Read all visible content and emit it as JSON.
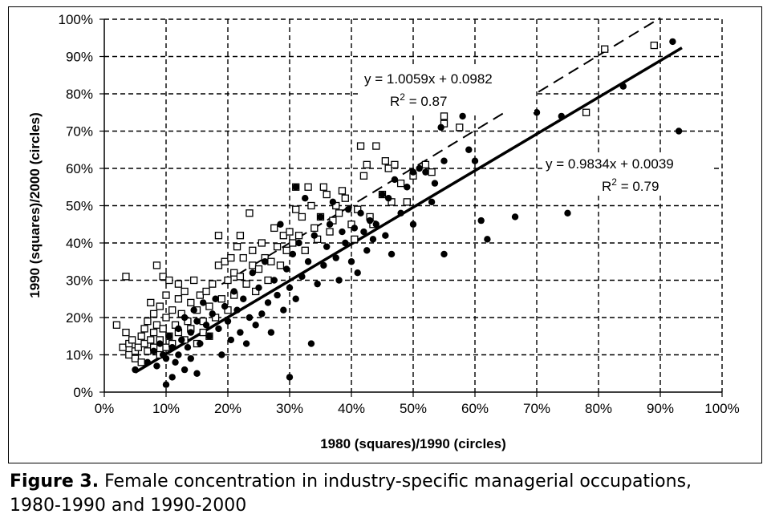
{
  "chart_data": {
    "type": "scatter",
    "xlabel": "1980 (squares)/1990 (circles)",
    "ylabel": "1990 (squares)/2000 (circles)",
    "xlim": [
      0,
      1
    ],
    "ylim": [
      0,
      1
    ],
    "x_ticks": [
      "0%",
      "10%",
      "20%",
      "30%",
      "40%",
      "50%",
      "60%",
      "70%",
      "80%",
      "90%",
      "100%"
    ],
    "y_ticks": [
      "0%",
      "10%",
      "20%",
      "30%",
      "40%",
      "50%",
      "60%",
      "70%",
      "80%",
      "90%",
      "100%"
    ],
    "grid": true,
    "series": [
      {
        "marker": "square",
        "trendline": {
          "style": "dashed",
          "slope": 1.0059,
          "intercept": 0.0982
        },
        "equation": "y = 1.0059x + 0.0982",
        "r2_label": "R",
        "r2_sup": "2",
        "r2_value": " = 0.87",
        "points": [
          [
            0.02,
            0.18
          ],
          [
            0.03,
            0.12
          ],
          [
            0.035,
            0.16
          ],
          [
            0.035,
            0.31
          ],
          [
            0.04,
            0.13
          ],
          [
            0.04,
            0.1
          ],
          [
            0.045,
            0.14
          ],
          [
            0.05,
            0.11
          ],
          [
            0.05,
            0.09
          ],
          [
            0.055,
            0.12
          ],
          [
            0.06,
            0.15
          ],
          [
            0.06,
            0.08
          ],
          [
            0.065,
            0.17
          ],
          [
            0.065,
            0.13
          ],
          [
            0.07,
            0.11
          ],
          [
            0.07,
            0.19
          ],
          [
            0.075,
            0.14
          ],
          [
            0.075,
            0.24
          ],
          [
            0.08,
            0.16
          ],
          [
            0.08,
            0.12
          ],
          [
            0.08,
            0.21
          ],
          [
            0.085,
            0.34
          ],
          [
            0.085,
            0.18
          ],
          [
            0.09,
            0.1
          ],
          [
            0.09,
            0.14
          ],
          [
            0.09,
            0.23
          ],
          [
            0.095,
            0.31
          ],
          [
            0.095,
            0.17
          ],
          [
            0.1,
            0.12
          ],
          [
            0.1,
            0.2
          ],
          [
            0.1,
            0.26
          ],
          [
            0.105,
            0.3
          ],
          [
            0.105,
            0.15
          ],
          [
            0.11,
            0.22
          ],
          [
            0.11,
            0.13
          ],
          [
            0.115,
            0.18
          ],
          [
            0.12,
            0.29
          ],
          [
            0.12,
            0.25
          ],
          [
            0.12,
            0.16
          ],
          [
            0.125,
            0.21
          ],
          [
            0.13,
            0.27
          ],
          [
            0.13,
            0.14
          ],
          [
            0.135,
            0.19
          ],
          [
            0.14,
            0.24
          ],
          [
            0.14,
            0.17
          ],
          [
            0.145,
            0.3
          ],
          [
            0.15,
            0.22
          ],
          [
            0.15,
            0.13
          ],
          [
            0.155,
            0.26
          ],
          [
            0.16,
            0.19
          ],
          [
            0.16,
            0.16
          ],
          [
            0.165,
            0.27
          ],
          [
            0.17,
            0.23
          ],
          [
            0.17,
            0.15
          ],
          [
            0.175,
            0.29
          ],
          [
            0.18,
            0.2
          ],
          [
            0.185,
            0.42
          ],
          [
            0.185,
            0.34
          ],
          [
            0.19,
            0.25
          ],
          [
            0.195,
            0.35
          ],
          [
            0.2,
            0.3
          ],
          [
            0.2,
            0.22
          ],
          [
            0.205,
            0.36
          ],
          [
            0.21,
            0.32
          ],
          [
            0.21,
            0.26
          ],
          [
            0.215,
            0.39
          ],
          [
            0.22,
            0.31
          ],
          [
            0.22,
            0.42
          ],
          [
            0.225,
            0.36
          ],
          [
            0.23,
            0.29
          ],
          [
            0.235,
            0.48
          ],
          [
            0.24,
            0.34
          ],
          [
            0.24,
            0.38
          ],
          [
            0.245,
            0.27
          ],
          [
            0.25,
            0.33
          ],
          [
            0.255,
            0.4
          ],
          [
            0.26,
            0.36
          ],
          [
            0.265,
            0.3
          ],
          [
            0.27,
            0.35
          ],
          [
            0.275,
            0.44
          ],
          [
            0.28,
            0.39
          ],
          [
            0.285,
            0.34
          ],
          [
            0.29,
            0.42
          ],
          [
            0.295,
            0.38
          ],
          [
            0.3,
            0.43
          ],
          [
            0.305,
            0.4
          ],
          [
            0.31,
            0.49
          ],
          [
            0.31,
            0.55
          ],
          [
            0.315,
            0.42
          ],
          [
            0.32,
            0.47
          ],
          [
            0.325,
            0.38
          ],
          [
            0.33,
            0.55
          ],
          [
            0.335,
            0.5
          ],
          [
            0.34,
            0.44
          ],
          [
            0.345,
            0.41
          ],
          [
            0.35,
            0.47
          ],
          [
            0.355,
            0.55
          ],
          [
            0.36,
            0.53
          ],
          [
            0.365,
            0.43
          ],
          [
            0.37,
            0.46
          ],
          [
            0.375,
            0.5
          ],
          [
            0.38,
            0.48
          ],
          [
            0.385,
            0.54
          ],
          [
            0.39,
            0.52
          ],
          [
            0.4,
            0.45
          ],
          [
            0.405,
            0.41
          ],
          [
            0.41,
            0.49
          ],
          [
            0.415,
            0.66
          ],
          [
            0.42,
            0.58
          ],
          [
            0.425,
            0.61
          ],
          [
            0.43,
            0.47
          ],
          [
            0.435,
            0.45
          ],
          [
            0.44,
            0.66
          ],
          [
            0.45,
            0.53
          ],
          [
            0.455,
            0.62
          ],
          [
            0.46,
            0.6
          ],
          [
            0.465,
            0.51
          ],
          [
            0.47,
            0.61
          ],
          [
            0.48,
            0.56
          ],
          [
            0.49,
            0.51
          ],
          [
            0.5,
            0.58
          ],
          [
            0.52,
            0.61
          ],
          [
            0.53,
            0.59
          ],
          [
            0.55,
            0.74
          ],
          [
            0.55,
            0.72
          ],
          [
            0.575,
            0.71
          ],
          [
            0.78,
            0.75
          ],
          [
            0.81,
            0.92
          ],
          [
            0.89,
            0.93
          ]
        ]
      },
      {
        "marker": "circle",
        "trendline": {
          "style": "solid",
          "slope": 0.9834,
          "intercept": 0.0039
        },
        "equation": "y = 0.9834x + 0.0039",
        "r2_label": "R",
        "r2_sup": "2",
        "r2_value": " = 0.79",
        "points": [
          [
            0.05,
            0.06
          ],
          [
            0.07,
            0.08
          ],
          [
            0.08,
            0.11
          ],
          [
            0.085,
            0.07
          ],
          [
            0.09,
            0.13
          ],
          [
            0.095,
            0.1
          ],
          [
            0.1,
            0.02
          ],
          [
            0.1,
            0.09
          ],
          [
            0.105,
            0.15
          ],
          [
            0.11,
            0.04
          ],
          [
            0.11,
            0.12
          ],
          [
            0.115,
            0.08
          ],
          [
            0.12,
            0.17
          ],
          [
            0.12,
            0.1
          ],
          [
            0.125,
            0.14
          ],
          [
            0.13,
            0.2
          ],
          [
            0.13,
            0.06
          ],
          [
            0.135,
            0.12
          ],
          [
            0.14,
            0.16
          ],
          [
            0.14,
            0.09
          ],
          [
            0.145,
            0.22
          ],
          [
            0.15,
            0.05
          ],
          [
            0.15,
            0.19
          ],
          [
            0.155,
            0.13
          ],
          [
            0.16,
            0.24
          ],
          [
            0.165,
            0.18
          ],
          [
            0.17,
            0.15
          ],
          [
            0.175,
            0.21
          ],
          [
            0.18,
            0.25
          ],
          [
            0.185,
            0.17
          ],
          [
            0.19,
            0.1
          ],
          [
            0.195,
            0.23
          ],
          [
            0.2,
            0.19
          ],
          [
            0.205,
            0.14
          ],
          [
            0.21,
            0.27
          ],
          [
            0.215,
            0.22
          ],
          [
            0.22,
            0.16
          ],
          [
            0.225,
            0.25
          ],
          [
            0.23,
            0.13
          ],
          [
            0.235,
            0.2
          ],
          [
            0.24,
            0.32
          ],
          [
            0.245,
            0.18
          ],
          [
            0.25,
            0.28
          ],
          [
            0.255,
            0.21
          ],
          [
            0.26,
            0.35
          ],
          [
            0.265,
            0.24
          ],
          [
            0.27,
            0.16
          ],
          [
            0.275,
            0.3
          ],
          [
            0.28,
            0.26
          ],
          [
            0.285,
            0.45
          ],
          [
            0.29,
            0.22
          ],
          [
            0.295,
            0.33
          ],
          [
            0.3,
            0.04
          ],
          [
            0.3,
            0.28
          ],
          [
            0.305,
            0.37
          ],
          [
            0.31,
            0.55
          ],
          [
            0.31,
            0.25
          ],
          [
            0.315,
            0.4
          ],
          [
            0.32,
            0.31
          ],
          [
            0.325,
            0.52
          ],
          [
            0.33,
            0.35
          ],
          [
            0.335,
            0.13
          ],
          [
            0.34,
            0.42
          ],
          [
            0.345,
            0.29
          ],
          [
            0.35,
            0.47
          ],
          [
            0.355,
            0.34
          ],
          [
            0.36,
            0.39
          ],
          [
            0.365,
            0.45
          ],
          [
            0.37,
            0.51
          ],
          [
            0.375,
            0.36
          ],
          [
            0.38,
            0.3
          ],
          [
            0.385,
            0.43
          ],
          [
            0.39,
            0.4
          ],
          [
            0.395,
            0.49
          ],
          [
            0.4,
            0.35
          ],
          [
            0.405,
            0.44
          ],
          [
            0.41,
            0.32
          ],
          [
            0.415,
            0.48
          ],
          [
            0.42,
            0.43
          ],
          [
            0.425,
            0.38
          ],
          [
            0.43,
            0.46
          ],
          [
            0.435,
            0.41
          ],
          [
            0.44,
            0.45
          ],
          [
            0.45,
            0.53
          ],
          [
            0.455,
            0.42
          ],
          [
            0.46,
            0.52
          ],
          [
            0.465,
            0.37
          ],
          [
            0.47,
            0.57
          ],
          [
            0.48,
            0.48
          ],
          [
            0.49,
            0.55
          ],
          [
            0.5,
            0.45
          ],
          [
            0.5,
            0.59
          ],
          [
            0.51,
            0.6
          ],
          [
            0.52,
            0.59
          ],
          [
            0.53,
            0.51
          ],
          [
            0.535,
            0.56
          ],
          [
            0.545,
            0.71
          ],
          [
            0.55,
            0.37
          ],
          [
            0.55,
            0.62
          ],
          [
            0.58,
            0.74
          ],
          [
            0.59,
            0.65
          ],
          [
            0.6,
            0.62
          ],
          [
            0.61,
            0.46
          ],
          [
            0.62,
            0.41
          ],
          [
            0.665,
            0.47
          ],
          [
            0.7,
            0.75
          ],
          [
            0.74,
            0.74
          ],
          [
            0.75,
            0.48
          ],
          [
            0.84,
            0.82
          ],
          [
            0.92,
            0.94
          ],
          [
            0.93,
            0.7
          ]
        ]
      }
    ]
  },
  "caption": {
    "label": "Figure 3.",
    "text": "Female concentration in industry-specific managerial occupations,",
    "text2": "1980-1990 and 1990-2000"
  }
}
